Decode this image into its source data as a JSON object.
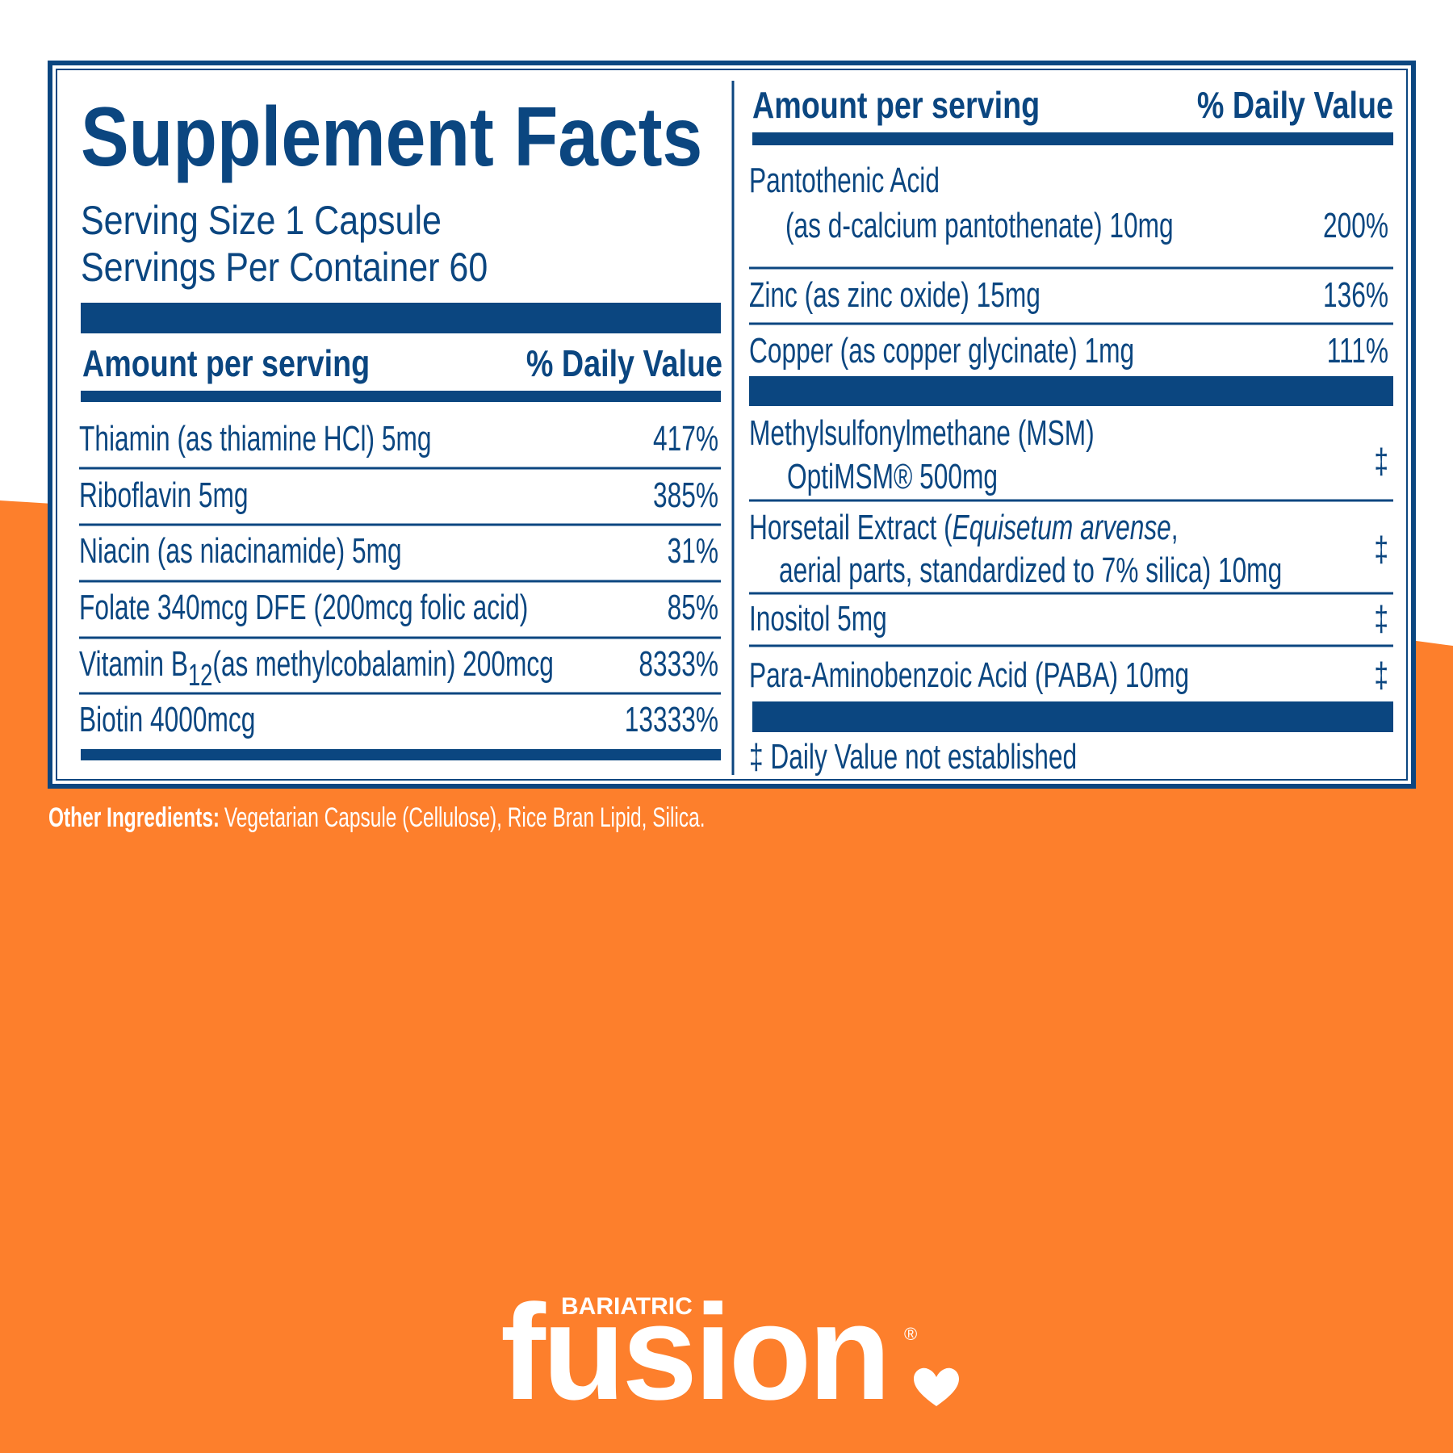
{
  "label": {
    "title": "Supplement Facts",
    "serving_size": "Serving Size 1 Capsule",
    "servings_per_container": "Servings Per Container 60",
    "headers": {
      "amount": "Amount per serving",
      "daily_value": "% Daily Value"
    },
    "left_rows": [
      {
        "name": "Thiamin (as thiamine HCl)  5mg",
        "dv": "417%"
      },
      {
        "name": "Riboflavin 5mg",
        "dv": "385%"
      },
      {
        "name": "Niacin (as niacinamide) 5mg",
        "dv": "31%"
      },
      {
        "name": "Folate 340mcg DFE (200mcg folic acid)",
        "dv": "85%"
      },
      {
        "name": [
          "Vitamin B",
          "12",
          "(as methylcobalamin) 200mcg"
        ],
        "dv": "8333%"
      },
      {
        "name": "Biotin 4000mcg",
        "dv": "13333%"
      }
    ],
    "right_rows": [
      {
        "lines": [
          "Pantothenic Acid",
          "(as d-calcium pantothenate) 10mg"
        ],
        "dv": "200%"
      },
      {
        "lines": [
          "Zinc (as zinc oxide) 15mg"
        ],
        "dv": "136%"
      },
      {
        "lines": [
          "Copper (as copper glycinate) 1mg"
        ],
        "dv": "111%"
      },
      {
        "lines": [
          "Methylsulfonylmethane (MSM)",
          "OptiMSM® 500mg"
        ],
        "dv": "‡"
      },
      {
        "lines": [
          [
            "Horsetail Extract (",
            "Equisetum arvense",
            ","
          ],
          "aerial parts, standardized to 7% silica) 10mg"
        ],
        "dv": "‡"
      },
      {
        "lines": [
          "Inositol 5mg"
        ],
        "dv": "‡"
      },
      {
        "lines": [
          "Para-Aminobenzoic Acid (PABA) 10mg"
        ],
        "dv": "‡"
      }
    ],
    "footnote": "‡ Daily Value not established"
  },
  "other_ingredients": {
    "label": "Other Ingredients:",
    "text": "Vegetarian Capsule (Cellulose), Rice Bran Lipid, Silica."
  },
  "brand": {
    "tagline": "BARIATRIC",
    "name": "fusion",
    "registered": "®"
  }
}
